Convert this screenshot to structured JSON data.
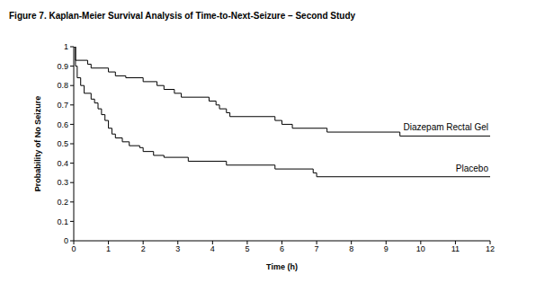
{
  "chart_data": {
    "type": "line",
    "title": "Figure 7. Kaplan-Meier Survival Analysis of Time-to-Next-Seizure – Second Study",
    "x_label": "Time (h)",
    "y_label": "Probability of No Seizure",
    "xlim": [
      0,
      12
    ],
    "xticks": [
      0,
      1,
      2,
      3,
      4,
      5,
      6,
      7,
      8,
      9,
      10,
      11,
      12
    ],
    "ylim": [
      0,
      1
    ],
    "yticks": [
      0,
      0.1,
      0.2,
      0.3,
      0.4,
      0.5,
      0.6,
      0.7,
      0.8,
      0.9,
      1
    ],
    "grid": false,
    "line_style": "step",
    "series": [
      {
        "name": "Diazepam Rectal Gel",
        "color": "#000000",
        "x": [
          0,
          0.05,
          0.4,
          0.5,
          1.0,
          1.2,
          1.5,
          2.0,
          2.4,
          2.6,
          2.9,
          3.1,
          3.9,
          4.1,
          4.2,
          4.4,
          4.5,
          5.8,
          6.0,
          6.3,
          7.3,
          9.4,
          12
        ],
        "values": [
          1,
          0.93,
          0.91,
          0.89,
          0.87,
          0.85,
          0.84,
          0.82,
          0.8,
          0.78,
          0.76,
          0.74,
          0.72,
          0.7,
          0.68,
          0.66,
          0.64,
          0.62,
          0.6,
          0.58,
          0.56,
          0.54,
          0.54
        ]
      },
      {
        "name": "Placebo",
        "color": "#000000",
        "x": [
          0,
          0.05,
          0.1,
          0.2,
          0.3,
          0.5,
          0.6,
          0.7,
          0.8,
          0.9,
          1.0,
          1.1,
          1.2,
          1.4,
          1.6,
          1.9,
          2.0,
          2.3,
          2.6,
          3.3,
          4.4,
          5.8,
          6.9,
          7.0,
          12
        ],
        "values": [
          1,
          0.9,
          0.84,
          0.8,
          0.76,
          0.73,
          0.71,
          0.68,
          0.65,
          0.62,
          0.58,
          0.55,
          0.53,
          0.51,
          0.49,
          0.48,
          0.46,
          0.44,
          0.43,
          0.41,
          0.39,
          0.37,
          0.35,
          0.33,
          0.33
        ]
      }
    ]
  }
}
